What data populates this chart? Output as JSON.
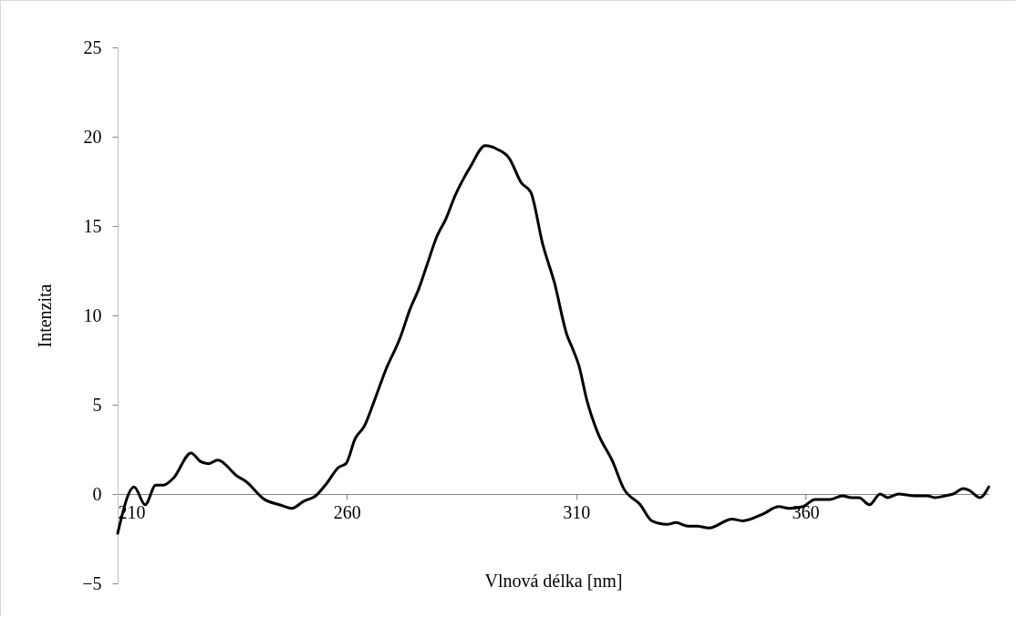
{
  "chart_data": {
    "type": "line",
    "xlabel": "Vlnová délka [nm]",
    "ylabel": "Intenzita",
    "xlim": [
      210,
      400
    ],
    "xticks": [
      210,
      260,
      310,
      360
    ],
    "ylim": [
      -5,
      25
    ],
    "yticks": [
      -5,
      0,
      5,
      10,
      15,
      20,
      25
    ],
    "grid": false,
    "marker": "none",
    "line_style": "solid",
    "series": [
      {
        "color": "#000000",
        "x": [
          210,
          213.6,
          216,
          218.3,
          220,
          222.2,
          226,
          228.2,
          229.8,
          231.8,
          236.1,
          238,
          242,
          245.3,
          248,
          250.6,
          253.2,
          255.6,
          258.2,
          259.8,
          261.8,
          263.8,
          266.1,
          268.4,
          271.7,
          273.7,
          275.7,
          277.7,
          279.6,
          281.6,
          283.6,
          286.9,
          290.2,
          292.8,
          295.4,
          298.1,
          300.1,
          302.7,
          305.3,
          308,
          309.3,
          310.6,
          312.3,
          314.6,
          318,
          320.4,
          324,
          326.5,
          329.8,
          331.8,
          334.4,
          336.4,
          339,
          344,
          346.3,
          350.9,
          354.2,
          356.5,
          359.5,
          362.1,
          365.4,
          368.1,
          370.1,
          371.7,
          374,
          376.3,
          378,
          380.3,
          383.9,
          386.6,
          388.2,
          390.5,
          392.2,
          394.5,
          395.8,
          398.1,
          400
        ],
        "values": [
          -2.2,
          0.4,
          -0.6,
          0.5,
          0.5,
          0.9,
          2.3,
          1.8,
          1.7,
          1.9,
          1.0,
          0.7,
          -0.3,
          -0.6,
          -0.8,
          -0.4,
          -0.1,
          0.6,
          1.5,
          1.7,
          3.1,
          3.8,
          5.3,
          6.9,
          8.8,
          10.3,
          11.5,
          13.0,
          14.4,
          15.4,
          16.7,
          18.3,
          19.5,
          19.3,
          18.8,
          17.4,
          16.9,
          14.0,
          11.8,
          8.9,
          8.1,
          7.2,
          5.3,
          3.5,
          1.8,
          0.3,
          -0.6,
          -1.5,
          -1.7,
          -1.6,
          -1.8,
          -1.8,
          -1.9,
          -1.4,
          -1.5,
          -1.1,
          -0.7,
          -0.8,
          -0.7,
          -0.3,
          -0.3,
          -0.1,
          -0.2,
          -0.2,
          -0.6,
          0.0,
          -0.2,
          0.0,
          -0.1,
          -0.1,
          -0.2,
          -0.1,
          0.0,
          0.3,
          0.2,
          -0.2,
          0.4
        ]
      }
    ]
  }
}
